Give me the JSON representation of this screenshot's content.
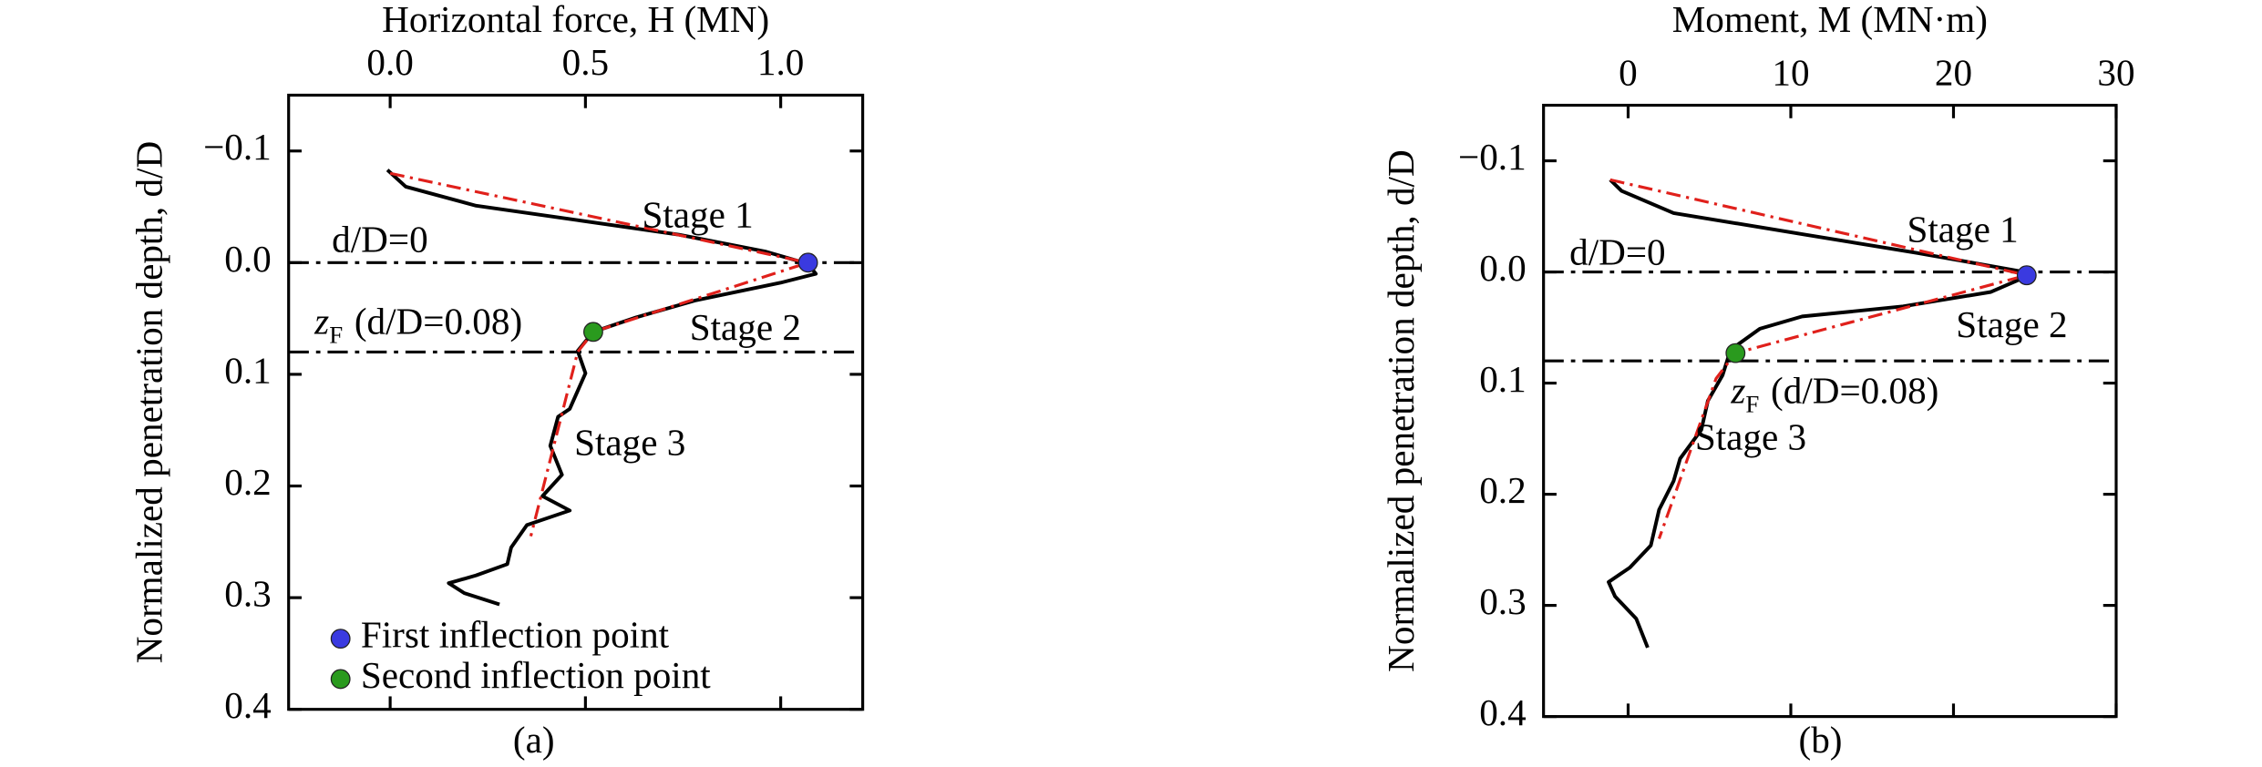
{
  "chart_data": [
    {
      "type": "line",
      "caption": "(a)",
      "x_label": "Horizontal force, H (MN)",
      "y_label": "Normalized penetration depth, d/D",
      "xlim": [
        -0.26,
        1.21
      ],
      "xticks": [
        {
          "value": 0,
          "label": "0.0"
        },
        0.5,
        {
          "value": 1,
          "label": "1.0"
        }
      ],
      "ylim": [
        -0.15,
        0.4
      ],
      "y_inverted": true,
      "yticks": [
        {
          "value": -0.1,
          "label": "−0.1"
        },
        {
          "value": 0,
          "label": "0.0"
        },
        0.1,
        0.2,
        0.3,
        0.4
      ],
      "hlines": [
        0,
        0.08
      ],
      "series": [
        {
          "style": "solid",
          "color": "#000000",
          "x": [
            -0.007,
            0.04,
            0.22,
            0.48,
            0.74,
            0.96,
            1.07,
            1.09,
            1.0,
            0.78,
            0.63,
            0.52,
            0.48,
            0.5,
            0.46,
            0.43,
            0.41,
            0.44,
            0.39,
            0.46,
            0.35,
            0.31,
            0.3,
            0.22,
            0.15,
            0.19,
            0.28
          ],
          "y": [
            -0.083,
            -0.068,
            -0.051,
            -0.038,
            -0.025,
            -0.01,
            0.001,
            0.01,
            0.018,
            0.034,
            0.049,
            0.062,
            0.079,
            0.099,
            0.131,
            0.138,
            0.164,
            0.19,
            0.209,
            0.222,
            0.235,
            0.255,
            0.27,
            0.28,
            0.287,
            0.296,
            0.306
          ]
        },
        {
          "style": "dashdot",
          "color": "#e0201b",
          "x": [
            0.0,
            1.07,
            0.52,
            0.48,
            0.36
          ],
          "y": [
            -0.08,
            0.0,
            0.062,
            0.08,
            0.245
          ]
        }
      ],
      "points": [
        {
          "name": "First inflection point",
          "color": "#3a3ae0",
          "x": 1.07,
          "y": 0.0
        },
        {
          "name": "Second inflection point",
          "color": "#2a9a1e",
          "x": 0.52,
          "y": 0.062
        }
      ],
      "annotations": [
        {
          "text": "d/D=0",
          "color": "#000000"
        },
        {
          "text": "z",
          "sub": "F",
          "rest": "(d/D=0.08)",
          "color": "#000000"
        },
        {
          "text": "Stage 1",
          "color": "#e0201b"
        },
        {
          "text": "Stage 2",
          "color": "#e0201b"
        },
        {
          "text": "Stage 3",
          "color": "#e0201b"
        }
      ]
    },
    {
      "type": "line",
      "caption": "(b)",
      "x_label": "Moment, M (MN·m)",
      "y_label": "Normalized penetration depth, d/D",
      "xlim": [
        -5.2,
        30
      ],
      "xticks": [
        0,
        10,
        20,
        30
      ],
      "ylim": [
        -0.15,
        0.4
      ],
      "y_inverted": true,
      "yticks": [
        {
          "value": -0.1,
          "label": "−0.1"
        },
        {
          "value": 0,
          "label": "0.0"
        },
        0.1,
        0.2,
        0.3,
        0.4
      ],
      "hlines": [
        0,
        0.08
      ],
      "series": [
        {
          "style": "solid",
          "color": "#000000",
          "x": [
            -1.1,
            -0.4,
            2.8,
            10.7,
            17.8,
            24.0,
            24.5,
            22.3,
            16.9,
            10.7,
            8.1,
            6.3,
            5.8,
            4.9,
            4.5,
            3.2,
            2.8,
            1.9,
            1.4,
            0.1,
            -1.2,
            -0.8,
            0.5,
            1.2
          ],
          "y": [
            -0.083,
            -0.073,
            -0.053,
            -0.034,
            -0.017,
            -0.001,
            0.004,
            0.018,
            0.031,
            0.04,
            0.051,
            0.07,
            0.093,
            0.116,
            0.142,
            0.168,
            0.188,
            0.214,
            0.246,
            0.266,
            0.279,
            0.292,
            0.312,
            0.338
          ]
        },
        {
          "style": "dashdot",
          "color": "#e0201b",
          "x": [
            -1.1,
            24.5,
            6.6,
            5.4,
            1.9
          ],
          "y": [
            -0.083,
            0.003,
            0.073,
            0.096,
            0.24
          ]
        }
      ],
      "points": [
        {
          "color": "#3a3ae0",
          "x": 24.5,
          "y": 0.003
        },
        {
          "color": "#2a9a1e",
          "x": 6.6,
          "y": 0.073
        }
      ],
      "annotations": [
        {
          "text": "d/D=0",
          "color": "#000000"
        },
        {
          "text": "z",
          "sub": "F",
          "rest": "(d/D=0.08)",
          "color": "#000000"
        },
        {
          "text": "Stage 1",
          "color": "#e0201b"
        },
        {
          "text": "Stage 2",
          "color": "#e0201b"
        },
        {
          "text": "Stage 3",
          "color": "#e0201b"
        }
      ]
    }
  ]
}
